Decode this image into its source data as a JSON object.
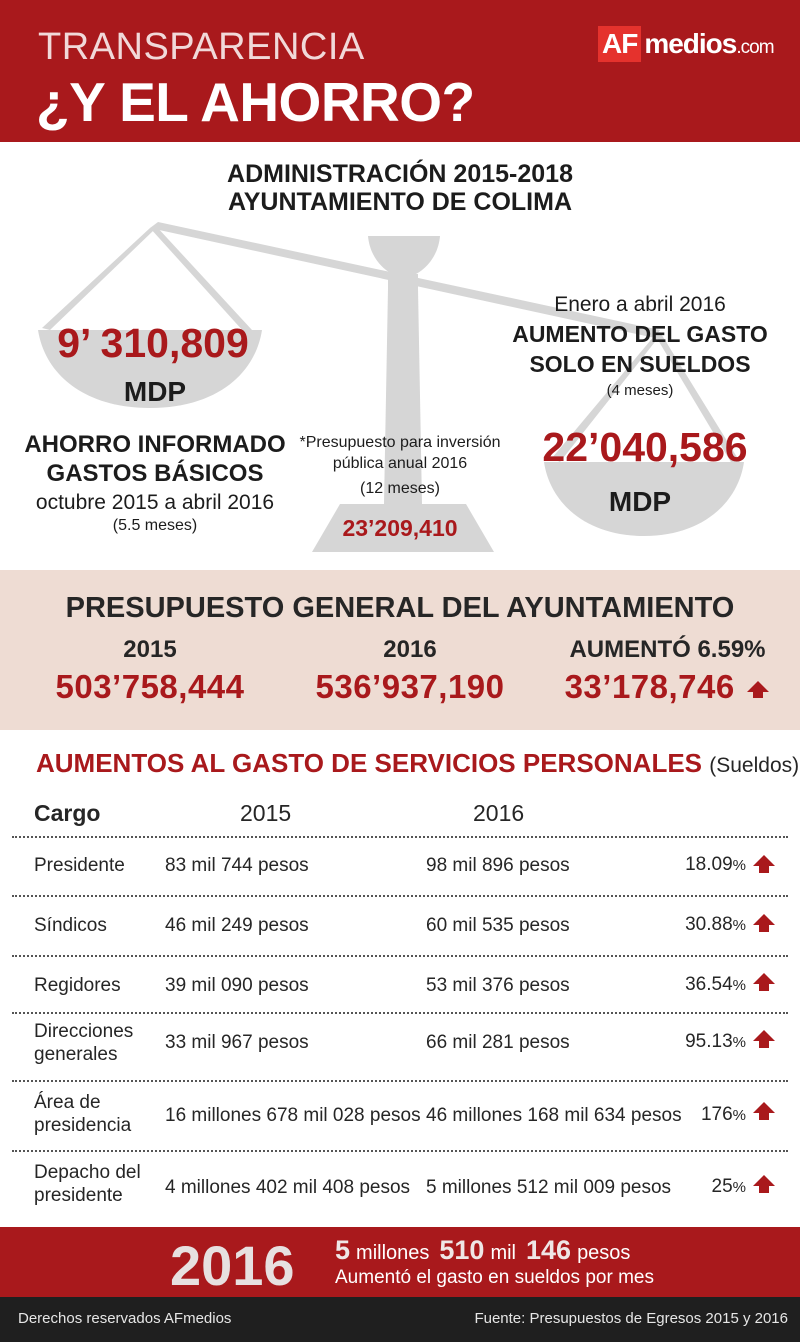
{
  "header": {
    "kicker": "TRANSPARENCIA",
    "headline": "¿Y EL AHORRO?",
    "logo_af": "AF",
    "logo_medios": "medios",
    "logo_tld": ".com"
  },
  "section1": {
    "title_line1": "ADMINISTRACIÓN 2015-2018",
    "title_line2": "AYUNTAMIENTO DE COLIMA"
  },
  "left_pan": {
    "amount": "9’ 310,809",
    "unit": "MDP",
    "label_line1": "AHORRO INFORMADO",
    "label_line2": "GASTOS BÁSICOS",
    "period": "octubre 2015 a abril 2016",
    "months": "(5.5 meses)"
  },
  "center": {
    "note_line1": "*Presupuesto para inversión",
    "note_line2": "pública anual 2016",
    "months": "(12 meses)",
    "amount": "23’209,410"
  },
  "right_pan": {
    "period": "Enero a abril 2016",
    "label_line1": "AUMENTO DEL GASTO",
    "label_line2": "SOLO EN SUELDOS",
    "months": "(4 meses)",
    "amount": "22’040,586",
    "unit": "MDP"
  },
  "budget": {
    "title": "PRESUPUESTO GENERAL DEL AYUNTAMIENTO",
    "y2015_label": "2015",
    "y2015_value": "503’758,444",
    "y2016_label": "2016",
    "y2016_value": "536’937,190",
    "increase_label": "AUMENTÓ 6.59%",
    "increase_value": "33’178,746"
  },
  "table": {
    "title": "AUMENTOS AL GASTO DE SERVICIOS PERSONALES",
    "title_note": "(Sueldos)",
    "headers": [
      "Cargo",
      "2015",
      "2016"
    ],
    "rows": [
      {
        "cargo_1": "Presidente",
        "cargo_2": "",
        "v2015": "83 mil 744 pesos",
        "v2016": "98 mil 896 pesos",
        "pct": "18.09",
        "pct_sign": "%"
      },
      {
        "cargo_1": "Síndicos",
        "cargo_2": "",
        "v2015": "46 mil 249 pesos",
        "v2016": "60 mil 535 pesos",
        "pct": "30.88",
        "pct_sign": "%"
      },
      {
        "cargo_1": "Regidores",
        "cargo_2": "",
        "v2015": "39 mil 090 pesos",
        "v2016": "53 mil 376 pesos",
        "pct": "36.54",
        "pct_sign": "%"
      },
      {
        "cargo_1": "Direcciones",
        "cargo_2": "generales",
        "v2015": "33 mil 967 pesos",
        "v2016": "66 mil 281 pesos",
        "pct": "95.13",
        "pct_sign": "%"
      },
      {
        "cargo_1": "Área de",
        "cargo_2": "presidencia",
        "v2015": "16 millones 678 mil 028 pesos",
        "v2016": "46 millones 168 mil 634 pesos",
        "pct": "176",
        "pct_sign": "%"
      },
      {
        "cargo_1": "Depacho del",
        "cargo_2": "presidente",
        "v2015": "4 millones 402 mil 408 pesos",
        "v2016": "5 millones 512 mil 009 pesos",
        "pct": "25",
        "pct_sign": "%"
      }
    ]
  },
  "summary": {
    "year": "2016",
    "n1": "5",
    "w1": "millones",
    "n2": "510",
    "w2": "mil",
    "n3": "146",
    "w3": "pesos",
    "line2": "Aumentó el gasto en sueldos por mes"
  },
  "credits": {
    "left": "Derechos reservados AFmedios",
    "right": "Fuente: Presupuestos de Egresos 2015 y 2016"
  },
  "colors": {
    "brand_red": "#a9191c",
    "band_bg": "#eedcd3",
    "scale_gray": "#d6d6d6"
  }
}
